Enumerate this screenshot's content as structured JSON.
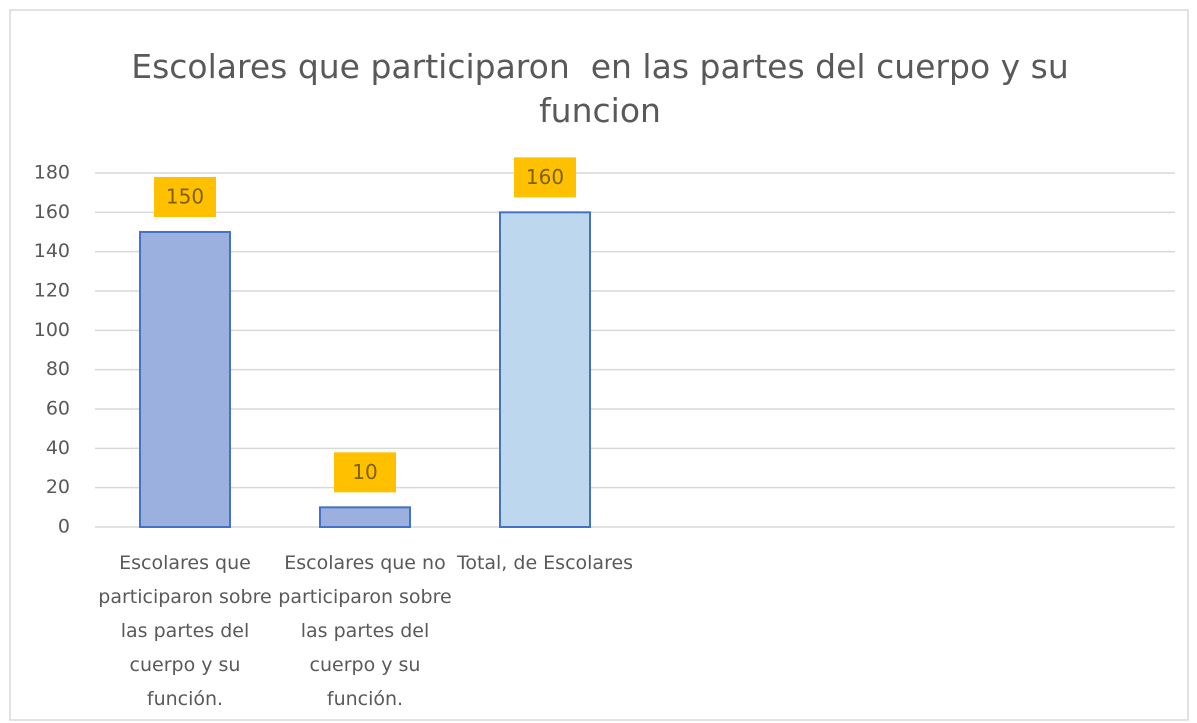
{
  "chart_data": {
    "type": "bar",
    "title": "Escolares que participaron  en las partes del cuerpo y su funcion",
    "categories": [
      "Escolares que participaron sobre las partes del cuerpo y su función.",
      "Escolares que no participaron sobre las partes del cuerpo y su función.",
      "Total, de Escolares",
      null,
      null,
      null
    ],
    "values": [
      150,
      10,
      160,
      null,
      null,
      null
    ],
    "colors": [
      "#9cb0df",
      "#9cb0df",
      "#bdd7ee",
      null,
      null,
      null
    ],
    "edge_color": "#4472c4",
    "label_box_color": "#ffc000",
    "ylim": [
      0,
      180
    ],
    "yticks": [
      0,
      20,
      40,
      60,
      80,
      100,
      120,
      140,
      160,
      180
    ],
    "grid": true
  }
}
